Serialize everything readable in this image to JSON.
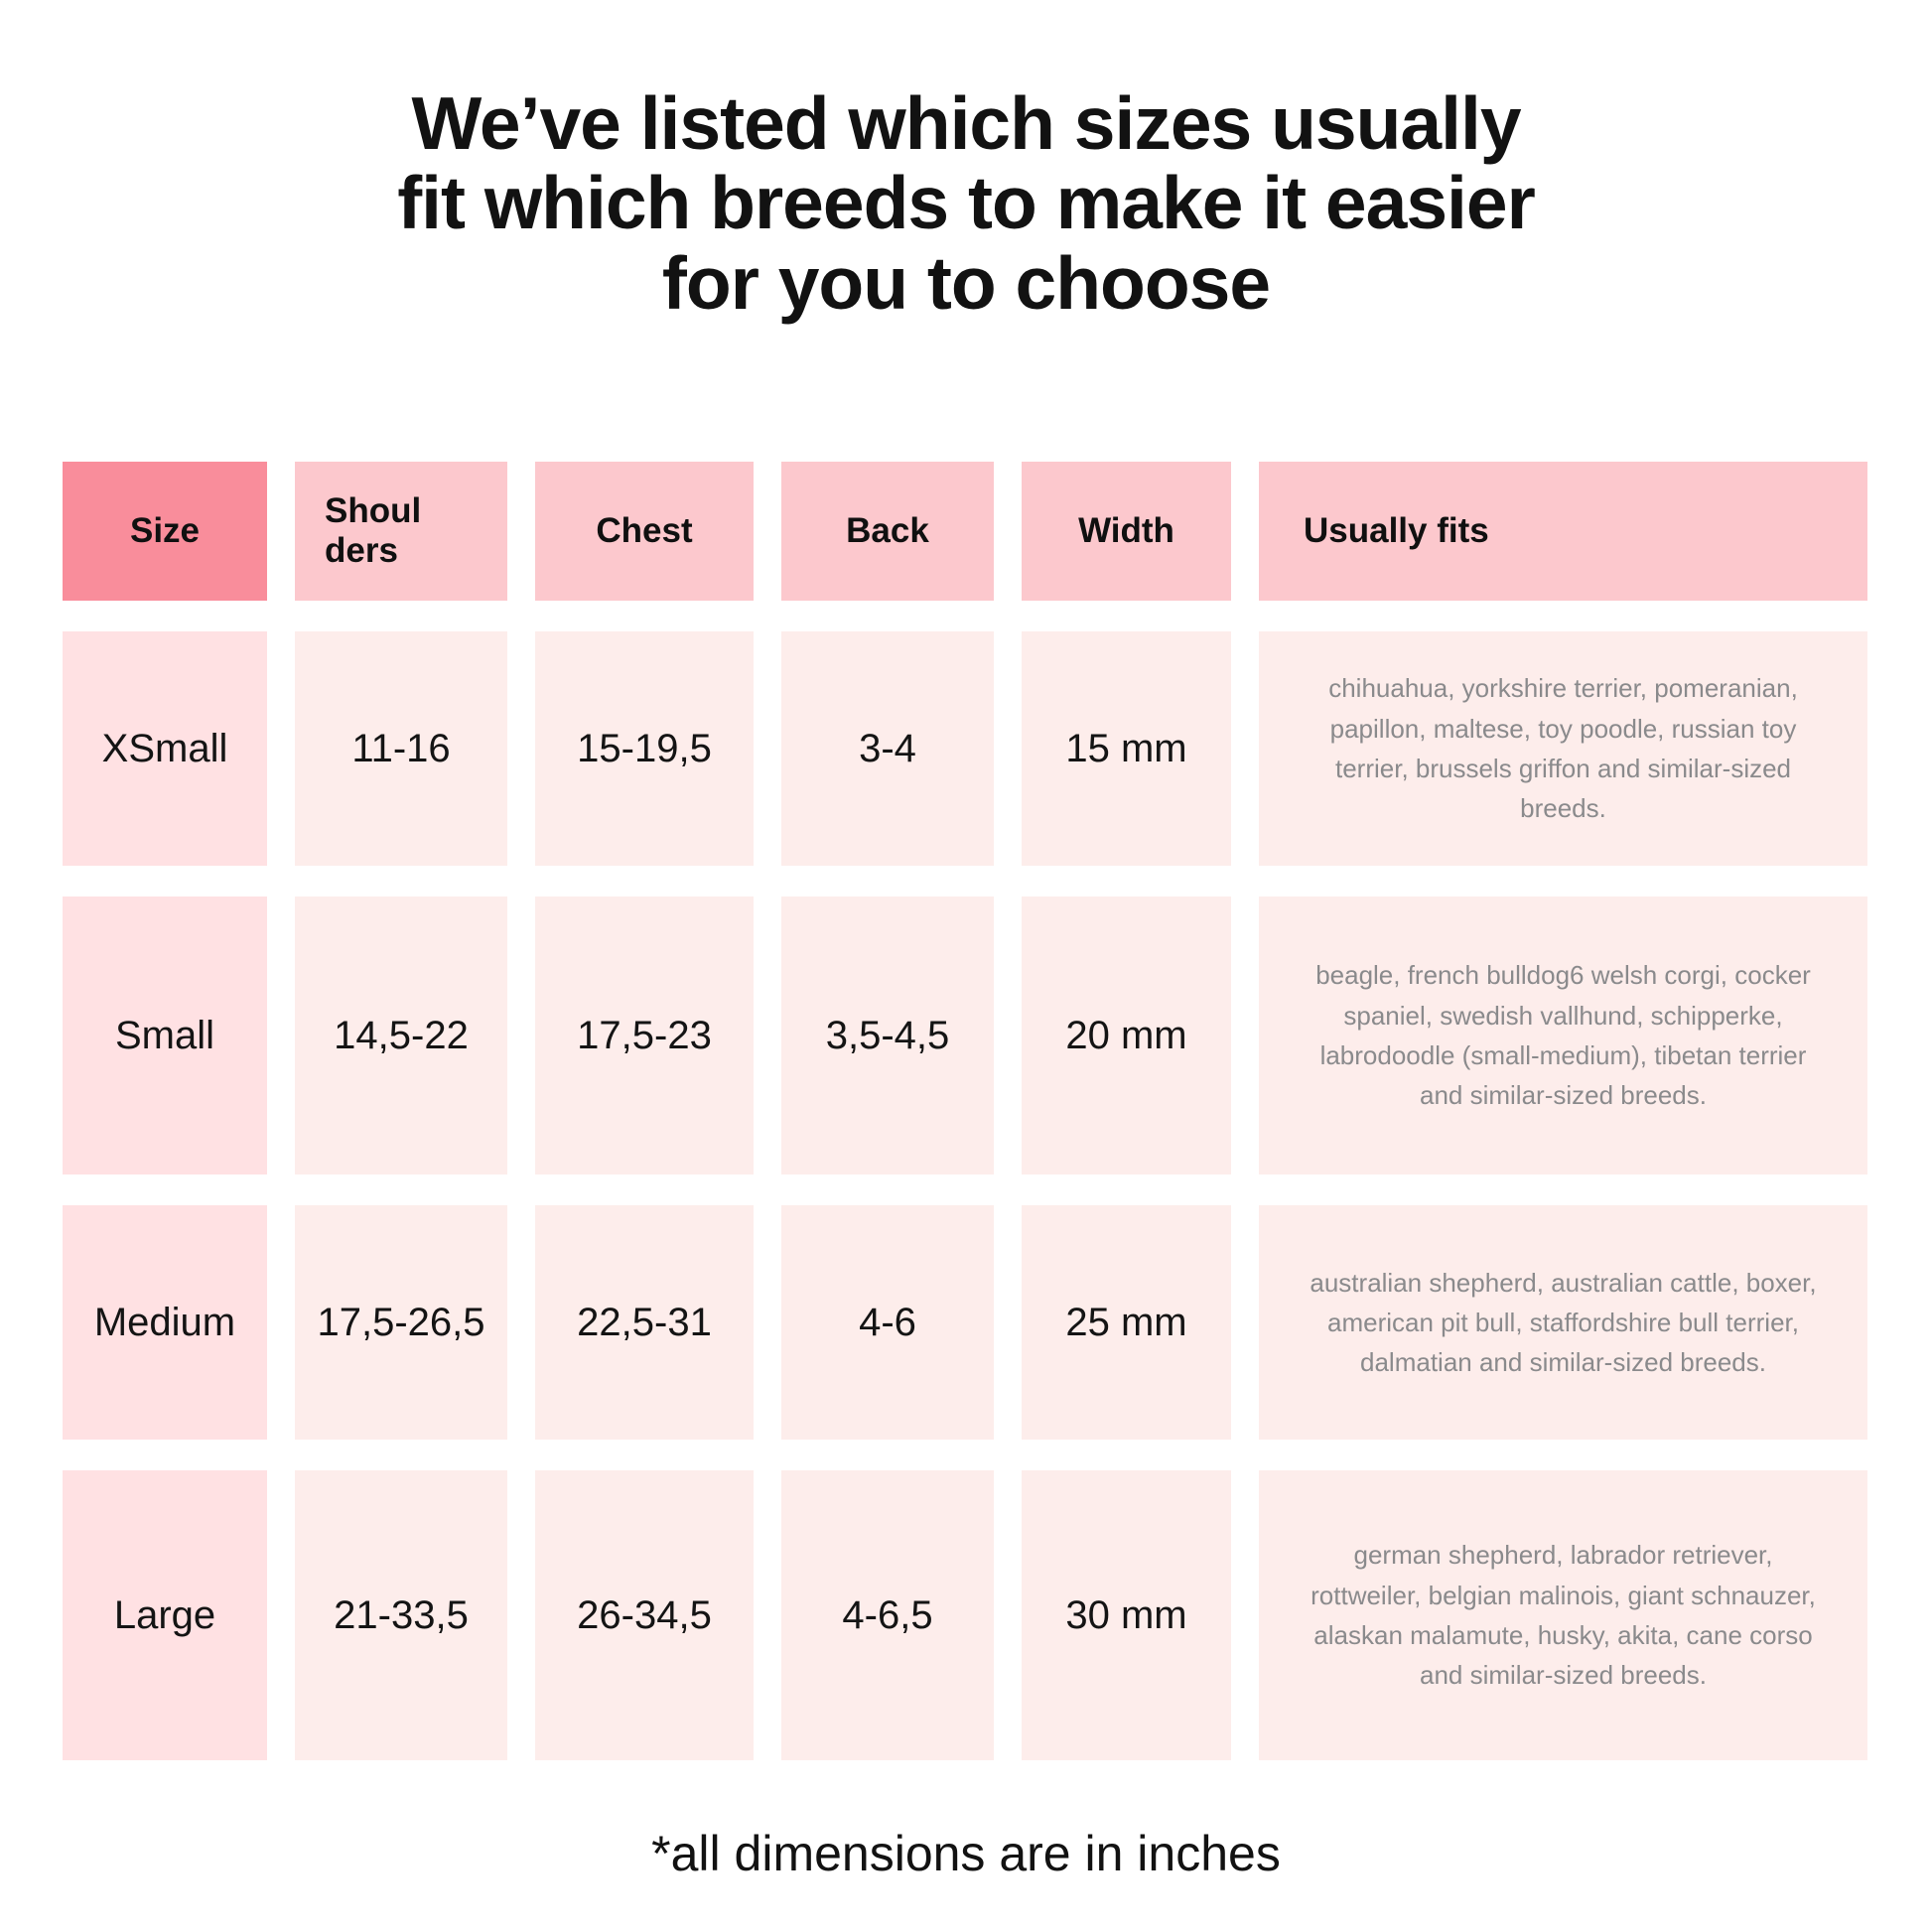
{
  "title_lines": [
    "We’ve listed which sizes usually",
    "fit which breeds to make it easier",
    "for you to choose"
  ],
  "footnote": "*all dimensions are in inches",
  "colors": {
    "header_size_bg": "#F98D9B",
    "header_bg": "#FCC8CD",
    "size_col_bg": "#FFE1E3",
    "cell_bg": "#FDEDEB",
    "breed_text": "#8A8A8C"
  },
  "chart_data": {
    "type": "table",
    "title": "We’ve listed which sizes usually fit which breeds to make it easier for you to choose",
    "columns": [
      "Size",
      "Shoulders",
      "Chest",
      "Back",
      "Width",
      "Usually fits"
    ],
    "rows": [
      [
        "XSmall",
        "11-16",
        "15-19,5",
        "3-4",
        "15 mm",
        "chihuahua, yorkshire terrier, pomeranian, papillon, maltese, toy poodle, russian toy terrier, brussels griffon and similar-sized breeds."
      ],
      [
        "Small",
        "14,5-22",
        "17,5-23",
        "3,5-4,5",
        "20 mm",
        "beagle, french bulldog6 welsh corgi, cocker spaniel, swedish vallhund, schipperke, labrodoodle (small-medium), tibetan terrier and similar-sized breeds."
      ],
      [
        "Medium",
        "17,5-26,5",
        "22,5-31",
        "4-6",
        "25 mm",
        "australian shepherd, australian cattle, boxer, american pit bull, staffordshire bull terrier, dalmatian and similar-sized breeds."
      ],
      [
        "Large",
        "21-33,5",
        "26-34,5",
        "4-6,5",
        "30 mm",
        "german shepherd, labrador retriever, rottweiler, belgian malinois, giant schnauzer, alaskan malamute, husky, akita, cane corso and similar-sized breeds."
      ]
    ],
    "footnote": "*all dimensions are in inches"
  }
}
